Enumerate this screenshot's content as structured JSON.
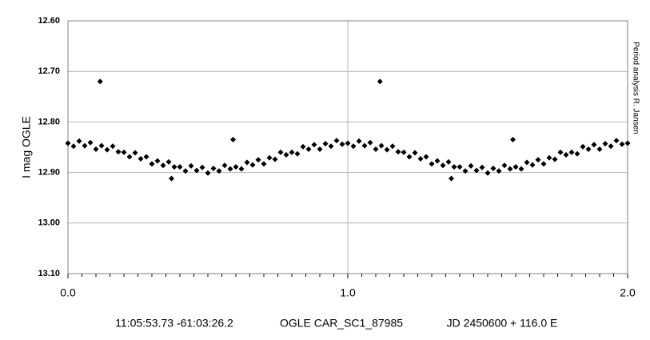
{
  "chart_data": {
    "type": "scatter",
    "ylabel": "I mag OGLE",
    "side_note": "Period analysis  R. Jansen",
    "caption": [
      "11:05:53.73 -61:03:26.2",
      "OGLE CAR_SC1_87985",
      "JD 2450600 + 116.0 E"
    ],
    "xlim": [
      0,
      2
    ],
    "xticks": [
      {
        "value": 0,
        "label": "0.0"
      },
      {
        "value": 1,
        "label": "1.0"
      },
      {
        "value": 2,
        "label": "2.0"
      }
    ],
    "xminorticks": [
      0.05,
      0.1,
      0.15,
      0.2,
      0.25,
      0.3,
      0.35,
      0.4,
      0.45,
      0.5,
      0.55,
      0.6,
      0.65,
      0.7,
      0.75,
      0.8,
      0.85,
      0.9,
      0.95,
      1.05,
      1.1,
      1.15,
      1.2,
      1.25,
      1.3,
      1.35,
      1.4,
      1.45,
      1.5,
      1.55,
      1.6,
      1.65,
      1.7,
      1.75,
      1.8,
      1.85,
      1.9,
      1.95
    ],
    "ylim": [
      12.6,
      13.1
    ],
    "yinverted": true,
    "yticks": [
      {
        "value": 12.6,
        "label": "12.60"
      },
      {
        "value": 12.7,
        "label": "12.70"
      },
      {
        "value": 12.8,
        "label": "12.80"
      },
      {
        "value": 12.9,
        "label": "12.90"
      },
      {
        "value": 13.0,
        "label": "13.00"
      },
      {
        "value": 13.1,
        "label": "13.10"
      }
    ],
    "grid": true,
    "color": "#000000",
    "x": [
      0,
      0.02,
      0.04,
      0.06,
      0.08,
      0.1,
      0.12,
      0.14,
      0.16,
      0.18,
      0.2,
      0.22,
      0.24,
      0.26,
      0.28,
      0.3,
      0.32,
      0.34,
      0.36,
      0.38,
      0.4,
      0.42,
      0.44,
      0.46,
      0.48,
      0.5,
      0.52,
      0.54,
      0.56,
      0.58,
      0.6,
      0.62,
      0.64,
      0.66,
      0.68,
      0.7,
      0.72,
      0.74,
      0.76,
      0.78,
      0.8,
      0.82,
      0.84,
      0.86,
      0.88,
      0.9,
      0.92,
      0.94,
      0.96,
      0.98,
      0.115,
      0.37,
      0.59,
      1,
      1.02,
      1.04,
      1.06,
      1.08,
      1.1,
      1.12,
      1.14,
      1.16,
      1.18,
      1.2,
      1.22,
      1.24,
      1.26,
      1.28,
      1.3,
      1.32,
      1.34,
      1.36,
      1.38,
      1.4,
      1.42,
      1.44,
      1.46,
      1.48,
      1.5,
      1.52,
      1.54,
      1.56,
      1.58,
      1.6,
      1.62,
      1.64,
      1.66,
      1.68,
      1.7,
      1.72,
      1.74,
      1.76,
      1.78,
      1.8,
      1.82,
      1.84,
      1.86,
      1.88,
      1.9,
      1.92,
      1.94,
      1.96,
      1.98,
      1.115,
      1.37,
      1.59,
      2
    ],
    "y": [
      12.842,
      12.848,
      12.838,
      12.847,
      12.841,
      12.854,
      12.847,
      12.855,
      12.848,
      12.859,
      12.86,
      12.869,
      12.861,
      12.873,
      12.869,
      12.883,
      12.877,
      12.886,
      12.879,
      12.889,
      12.889,
      12.897,
      12.887,
      12.896,
      12.89,
      12.901,
      12.892,
      12.897,
      12.886,
      12.893,
      12.889,
      12.893,
      12.88,
      12.885,
      12.875,
      12.883,
      12.871,
      12.874,
      12.86,
      12.865,
      12.86,
      12.863,
      12.849,
      12.854,
      12.845,
      12.854,
      12.843,
      12.848,
      12.837,
      12.844,
      12.72,
      12.912,
      12.835,
      12.842,
      12.848,
      12.838,
      12.847,
      12.841,
      12.854,
      12.847,
      12.855,
      12.848,
      12.859,
      12.86,
      12.869,
      12.861,
      12.873,
      12.869,
      12.883,
      12.877,
      12.886,
      12.879,
      12.889,
      12.889,
      12.897,
      12.887,
      12.896,
      12.89,
      12.901,
      12.892,
      12.897,
      12.886,
      12.893,
      12.889,
      12.893,
      12.88,
      12.885,
      12.875,
      12.883,
      12.871,
      12.874,
      12.86,
      12.865,
      12.86,
      12.863,
      12.849,
      12.854,
      12.845,
      12.854,
      12.843,
      12.848,
      12.837,
      12.844,
      12.72,
      12.912,
      12.835,
      12.842
    ]
  }
}
